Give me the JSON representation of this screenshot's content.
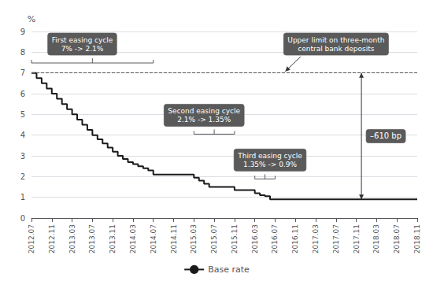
{
  "chart_data": {
    "type": "step",
    "ylabel": "%",
    "categories": [
      "2012.07",
      null,
      null,
      null,
      "2012.11",
      null,
      null,
      null,
      "2013.03",
      null,
      null,
      null,
      "2013.07",
      null,
      null,
      null,
      "2013.11",
      null,
      null,
      null,
      "2014.03",
      null,
      null,
      null,
      "2014.07",
      null,
      null,
      null,
      "2014.11",
      null,
      null,
      null,
      "2015.03",
      null,
      null,
      null,
      "2015.07",
      null,
      null,
      null,
      "2015.11",
      null,
      null,
      null,
      "2016.03",
      null,
      null,
      null,
      "2016.07",
      null,
      null,
      null,
      "2016.11",
      null,
      null,
      null,
      "2017.03",
      null,
      null,
      null,
      "2017.07",
      null,
      null,
      null,
      "2017.11",
      null,
      null,
      null,
      "2018.03",
      null,
      null,
      null,
      "2018.07",
      null,
      null,
      null,
      "2018.11"
    ],
    "series": [
      {
        "name": "Base rate",
        "color": "#1a1a1a",
        "values": [
          7.0,
          6.75,
          6.5,
          6.25,
          6.0,
          5.75,
          5.5,
          5.25,
          5.0,
          4.75,
          4.5,
          4.25,
          4.0,
          3.8,
          3.6,
          3.4,
          3.2,
          3.0,
          2.85,
          2.7,
          2.6,
          2.5,
          2.4,
          2.3,
          2.1,
          2.1,
          2.1,
          2.1,
          2.1,
          2.1,
          2.1,
          2.1,
          1.95,
          1.8,
          1.65,
          1.5,
          1.5,
          1.5,
          1.5,
          1.5,
          1.35,
          1.35,
          1.35,
          1.35,
          1.2,
          1.1,
          1.05,
          0.9,
          0.9,
          0.9,
          0.9,
          0.9,
          0.9,
          0.9,
          0.9,
          0.9,
          0.9,
          0.9,
          0.9,
          0.9,
          0.9,
          0.9,
          0.9,
          0.9,
          0.9,
          0.9,
          0.9,
          0.9,
          0.9,
          0.9,
          0.9,
          0.9,
          0.9,
          0.9,
          0.9,
          0.9,
          0.9
        ]
      }
    ],
    "ylim": [
      0,
      9
    ],
    "yticks": [
      0,
      1,
      2,
      3,
      4,
      5,
      6,
      7,
      8,
      9
    ],
    "grid": true,
    "legend": "bottom",
    "reference_line": {
      "y": 7.0,
      "color": "#555555",
      "line_style": "dashed"
    },
    "annotations": [
      {
        "text": "First easing cycle\n7% -> 2.1%",
        "color": "#5a5a5a"
      },
      {
        "text": "Second easing cycle\n2.1% -> 1.35%",
        "color": "#5a5a5a"
      },
      {
        "text": "Third easing cycle\n1.35% -> 0.9%",
        "color": "#5a5a5a"
      },
      {
        "text": "Upper limit on three-month\ncentral bank deposits",
        "color": "#5a5a5a"
      }
    ],
    "range_arrow": {
      "text": "–610 bp",
      "from": 0.9,
      "to": 7.0,
      "color": "#5a5a5a"
    }
  }
}
